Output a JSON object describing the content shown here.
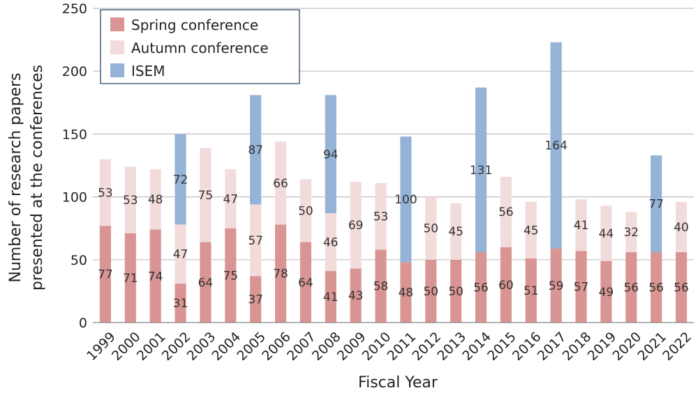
{
  "chart_data": {
    "type": "bar",
    "stacked": true,
    "categories": [
      "1999",
      "2000",
      "2001",
      "2002",
      "2003",
      "2004",
      "2005",
      "2006",
      "2007",
      "2008",
      "2009",
      "2010",
      "2011",
      "2012",
      "2013",
      "2014",
      "2015",
      "2016",
      "2017",
      "2018",
      "2019",
      "2020",
      "2021",
      "2022"
    ],
    "series": [
      {
        "name": "Spring conference",
        "color": "#d99594",
        "values": [
          77,
          71,
          74,
          31,
          64,
          75,
          37,
          78,
          64,
          41,
          43,
          58,
          48,
          50,
          50,
          56,
          60,
          51,
          59,
          57,
          49,
          56,
          56,
          56
        ]
      },
      {
        "name": "Autumn conference",
        "color": "#f2dcdb",
        "values": [
          53,
          53,
          48,
          47,
          75,
          47,
          57,
          66,
          50,
          46,
          69,
          53,
          null,
          50,
          45,
          null,
          56,
          45,
          null,
          41,
          44,
          32,
          null,
          40
        ]
      },
      {
        "name": "ISEM",
        "color": "#95b3d7",
        "values": [
          null,
          null,
          null,
          72,
          null,
          null,
          87,
          null,
          null,
          94,
          null,
          null,
          100,
          null,
          null,
          131,
          null,
          null,
          164,
          null,
          null,
          null,
          77,
          null
        ]
      }
    ],
    "xlabel": "Fiscal Year",
    "ylabel": "Number of research papers presented at the conferences",
    "ylabel_lines": [
      "Number of research papers",
      "presented at the conferences"
    ],
    "ylim": [
      0,
      250
    ],
    "yticks": [
      0,
      50,
      100,
      150,
      200,
      250
    ],
    "grid": true,
    "legend_position": "top-left"
  }
}
